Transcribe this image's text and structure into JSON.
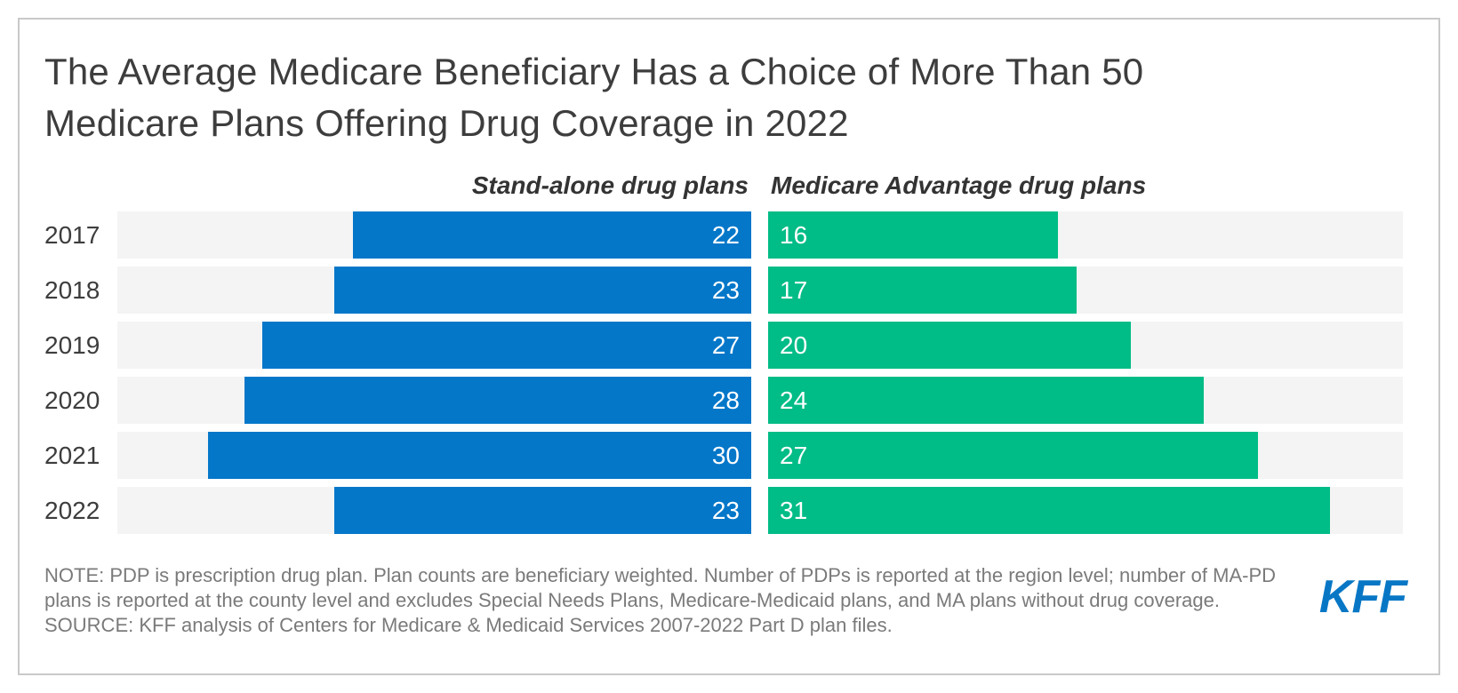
{
  "title": {
    "line1": "The Average Medicare Beneficiary Has a Choice of More Than 50",
    "line2": "Medicare Plans Offering Drug Coverage in 2022",
    "full": "The Average Medicare Beneficiary Has a Choice of More Than 50 Medicare Plans Offering Drug Coverage in 2022"
  },
  "chart_data": {
    "type": "bar",
    "orientation": "horizontal-diverging",
    "categories": [
      "2017",
      "2018",
      "2019",
      "2020",
      "2021",
      "2022"
    ],
    "series": [
      {
        "name": "Stand-alone drug plans",
        "color": "#0477c9",
        "values": [
          22,
          23,
          27,
          28,
          30,
          23
        ],
        "align": "right"
      },
      {
        "name": "Medicare Advantage drug plans",
        "color": "#00bc86",
        "values": [
          16,
          17,
          20,
          24,
          27,
          31
        ],
        "align": "left"
      }
    ],
    "xlim": [
      0,
      35
    ],
    "value_labels": "inside",
    "value_label_color": "#ffffff",
    "track_color": "#f4f4f4",
    "grid": false,
    "legend_position": "column-headers"
  },
  "notes": {
    "note_line1": "NOTE: PDP is prescription drug plan. Plan counts are beneficiary weighted. Number of PDPs is reported at the region level; number of MA-PD",
    "note_line2": "plans is reported at the county level and excludes Special Needs Plans, Medicare-Medicaid plans, and MA plans without drug coverage.",
    "source": "SOURCE: KFF analysis of Centers for Medicare & Medicaid Services 2007-2022 Part D plan files."
  },
  "logo": {
    "text": "KFF",
    "color": "#0777c5"
  },
  "layout_hints": {
    "row_top_start": 238,
    "row_pitch": 62
  }
}
